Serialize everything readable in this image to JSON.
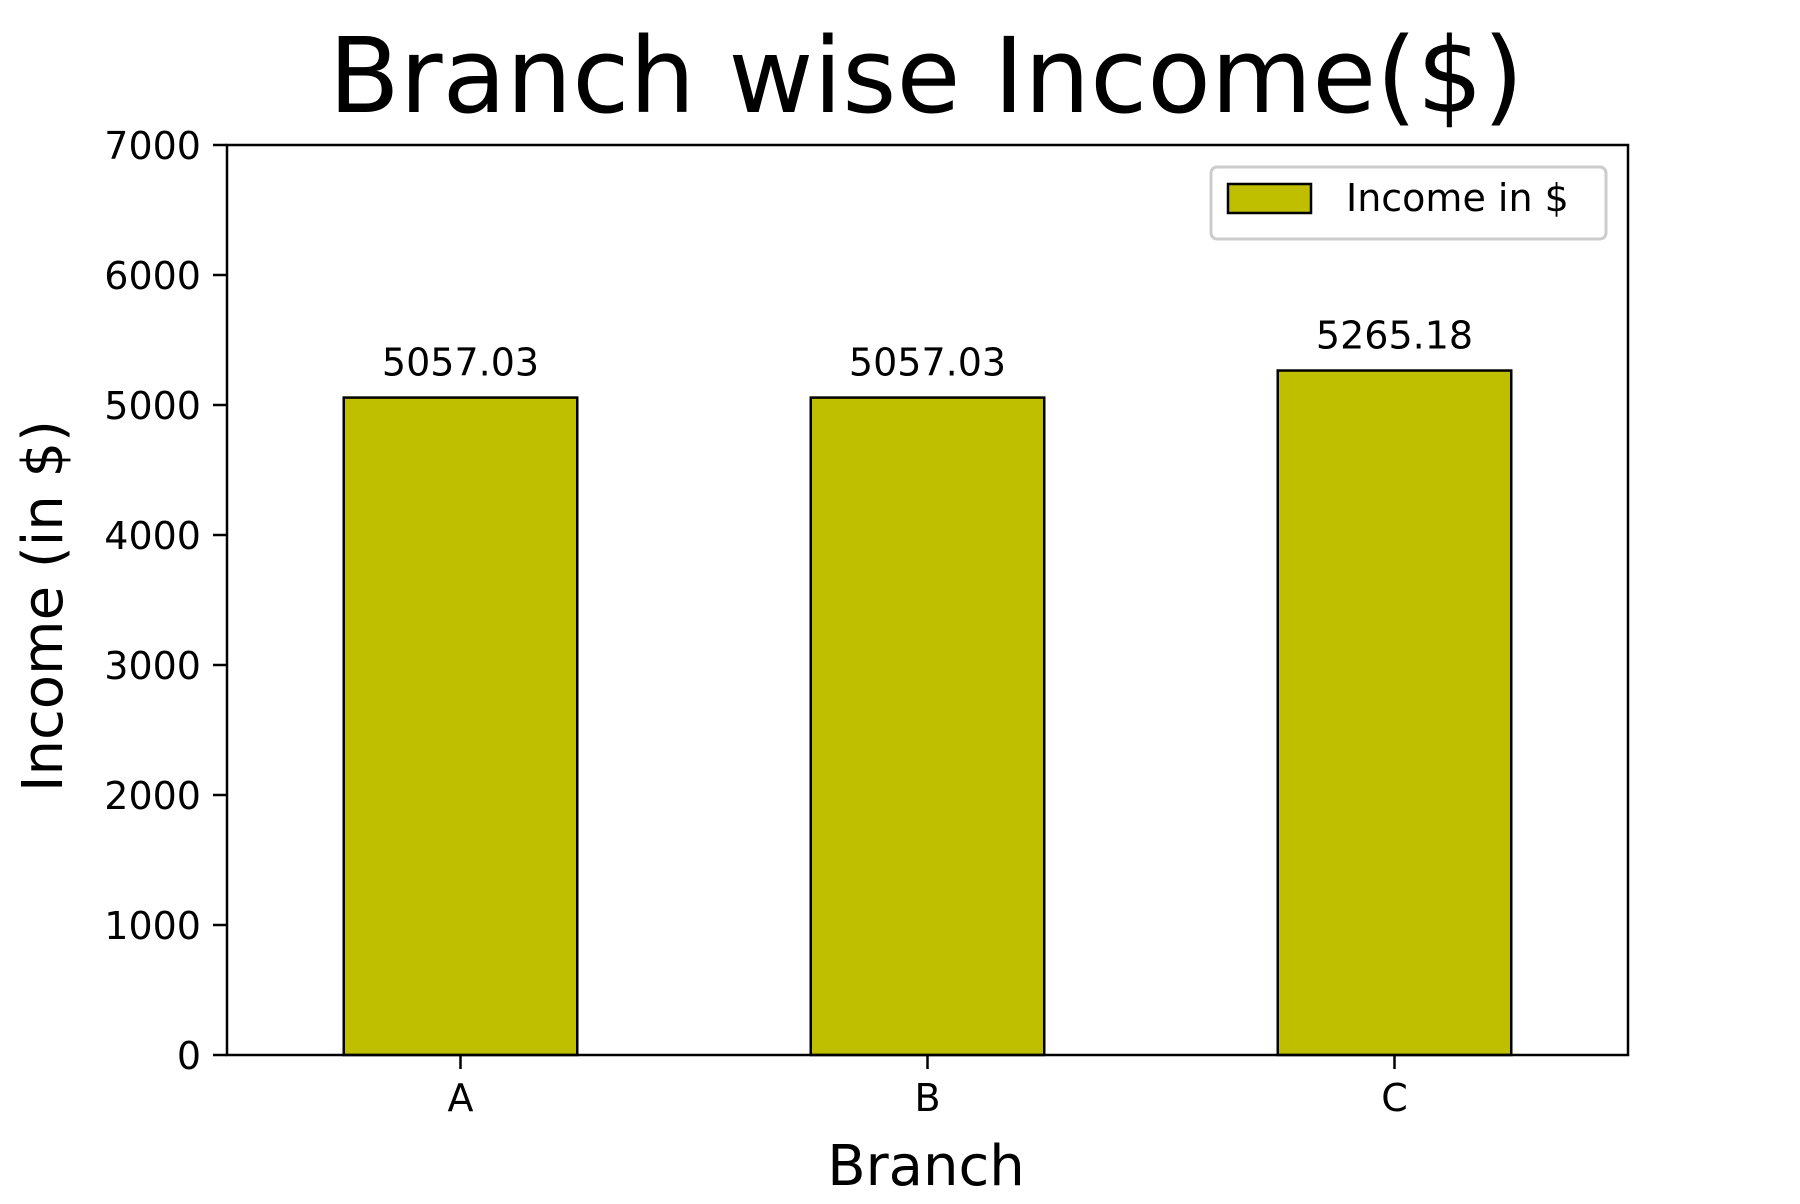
{
  "chart_data": {
    "type": "bar",
    "title": "Branch wise Income($)",
    "xlabel": "Branch",
    "ylabel": "Income (in $)",
    "categories": [
      "A",
      "B",
      "C"
    ],
    "series": [
      {
        "name": "Income in $",
        "values": [
          5057.03,
          5057.03,
          5265.18
        ],
        "labels": [
          "5057.03",
          "5057.03",
          "5265.18"
        ]
      }
    ],
    "ylim": [
      0,
      7000
    ],
    "yticks": [
      0,
      1000,
      2000,
      3000,
      4000,
      5000,
      6000,
      7000
    ],
    "grid": false,
    "legend_position": "top-right",
    "colors": {
      "bar_fill": "#bfbf00",
      "bar_edge": "#000000",
      "legend_border": "#cccccc"
    }
  }
}
